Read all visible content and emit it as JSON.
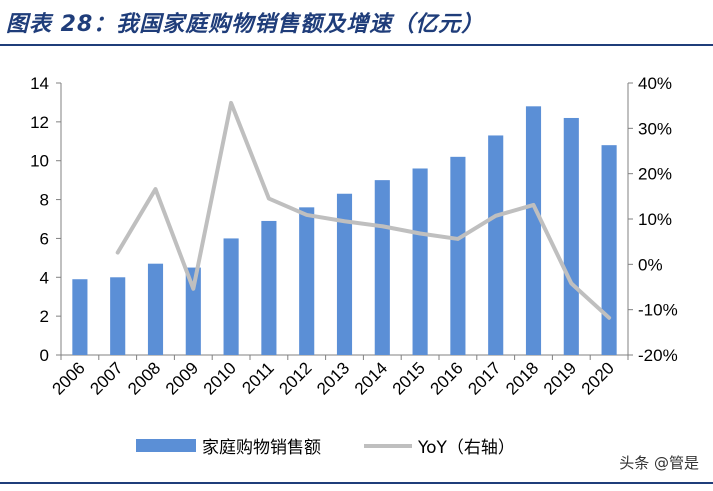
{
  "header": {
    "title": "图表 28：我国家庭购物销售额及增速（亿元）"
  },
  "watermark": "头条 @管是",
  "colors": {
    "bar": "#5b8fd6",
    "line": "#bfbfbf",
    "axis": "#808080",
    "title": "#1f3d7a"
  },
  "chart_data": {
    "type": "bar",
    "title": "图表 28：我国家庭购物销售额及增速（亿元）",
    "categories": [
      "2006",
      "2007",
      "2008",
      "2009",
      "2010",
      "2011",
      "2012",
      "2013",
      "2014",
      "2015",
      "2016",
      "2017",
      "2018",
      "2019",
      "2020"
    ],
    "series": [
      {
        "name": "家庭购物销售额",
        "kind": "bar",
        "axis": "left",
        "values": [
          3.9,
          4.0,
          4.7,
          4.5,
          6.0,
          6.9,
          7.6,
          8.3,
          9.0,
          9.6,
          10.2,
          11.3,
          12.8,
          12.2,
          10.8
        ]
      },
      {
        "name": "YoY（右轴）",
        "kind": "line",
        "axis": "right",
        "values": [
          null,
          2.6,
          16.6,
          -5.4,
          35.6,
          14.5,
          10.9,
          9.5,
          8.4,
          6.8,
          5.6,
          10.7,
          13.1,
          -4.2,
          -11.8
        ]
      }
    ],
    "y_left": {
      "min": 0,
      "max": 14,
      "ticks": [
        0,
        2,
        4,
        6,
        8,
        10,
        12,
        14
      ]
    },
    "y_right": {
      "min": -20,
      "max": 40,
      "ticks": [
        "-20%",
        "-10%",
        "0%",
        "10%",
        "20%",
        "30%",
        "40%"
      ]
    },
    "grid": false,
    "legend_position": "bottom"
  }
}
